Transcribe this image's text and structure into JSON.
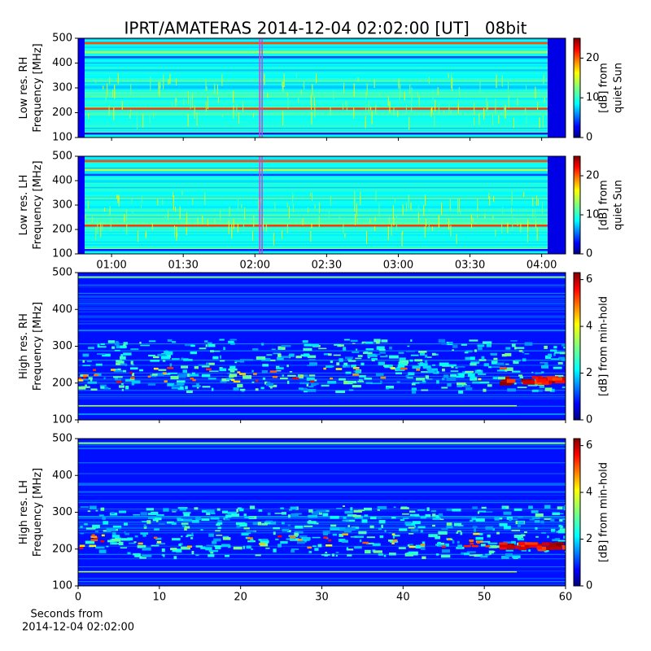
{
  "title": "IPRT/AMATERAS 2014-12-04 02:02:00 [UT]   08bit",
  "chart_data": [
    {
      "type": "spectrogram",
      "kind": "low",
      "ylabel": [
        "Low res. RH",
        "Frequency [MHz]"
      ],
      "ylim": [
        100,
        500
      ],
      "yticks": [
        100,
        200,
        300,
        400,
        500
      ],
      "xlim": [
        46,
        250
      ],
      "xticks": [
        60,
        90,
        120,
        150,
        180,
        210,
        240
      ],
      "xtick_labels": false,
      "highlight": [
        122,
        123
      ],
      "highlight_color": "#d040d0",
      "colormap": "jet",
      "colorbar": {
        "label": [
          "[dB] from",
          "quiet Sun"
        ],
        "clim": [
          0,
          25
        ],
        "ticks": [
          0,
          10,
          20
        ]
      }
    },
    {
      "type": "spectrogram",
      "kind": "low",
      "ylabel": [
        "Low res. LH",
        "Frequency [MHz]"
      ],
      "ylim": [
        100,
        500
      ],
      "yticks": [
        100,
        200,
        300,
        400,
        500
      ],
      "xlim": [
        46,
        250
      ],
      "xticks": [
        {
          "value": 60,
          "label": "01:00"
        },
        {
          "value": 90,
          "label": "01:30"
        },
        {
          "value": 120,
          "label": "02:00"
        },
        {
          "value": 150,
          "label": "02:30"
        },
        {
          "value": 180,
          "label": "03:00"
        },
        {
          "value": 210,
          "label": "03:30"
        },
        {
          "value": 240,
          "label": "04:00"
        }
      ],
      "xtick_labels": true,
      "highlight": [
        122,
        123
      ],
      "highlight_color": "#d040d0",
      "colormap": "jet",
      "colorbar": {
        "label": [
          "[dB] from",
          "quiet Sun"
        ],
        "clim": [
          0,
          25
        ],
        "ticks": [
          0,
          10,
          20
        ]
      }
    },
    {
      "type": "spectrogram",
      "kind": "high",
      "ylabel": [
        "High res. RH",
        "Frequency [MHz]"
      ],
      "ylim": [
        100,
        500
      ],
      "yticks": [
        100,
        200,
        300,
        400,
        500
      ],
      "xlim": [
        0,
        60
      ],
      "xticks": [
        0,
        10,
        20,
        30,
        40,
        50,
        60
      ],
      "xtick_labels": false,
      "colormap": "jet",
      "colorbar": {
        "label": [
          "[dB] from min-hold"
        ],
        "clim": [
          0,
          6.3
        ],
        "ticks": [
          0,
          2,
          4,
          6
        ]
      }
    },
    {
      "type": "spectrogram",
      "kind": "high",
      "ylabel": [
        "High res. LH",
        "Frequency [MHz]"
      ],
      "ylim": [
        100,
        500
      ],
      "yticks": [
        100,
        200,
        300,
        400,
        500
      ],
      "xlim": [
        0,
        60
      ],
      "xticks": [
        0,
        10,
        20,
        30,
        40,
        50,
        60
      ],
      "xtick_labels": true,
      "colormap": "jet",
      "xlabel": [
        "Seconds from",
        "2014-12-04 02:02:00"
      ],
      "colorbar": {
        "label": [
          "[dB] from min-hold"
        ],
        "clim": [
          0,
          6.3
        ],
        "ticks": [
          0,
          2,
          4,
          6
        ]
      }
    }
  ]
}
